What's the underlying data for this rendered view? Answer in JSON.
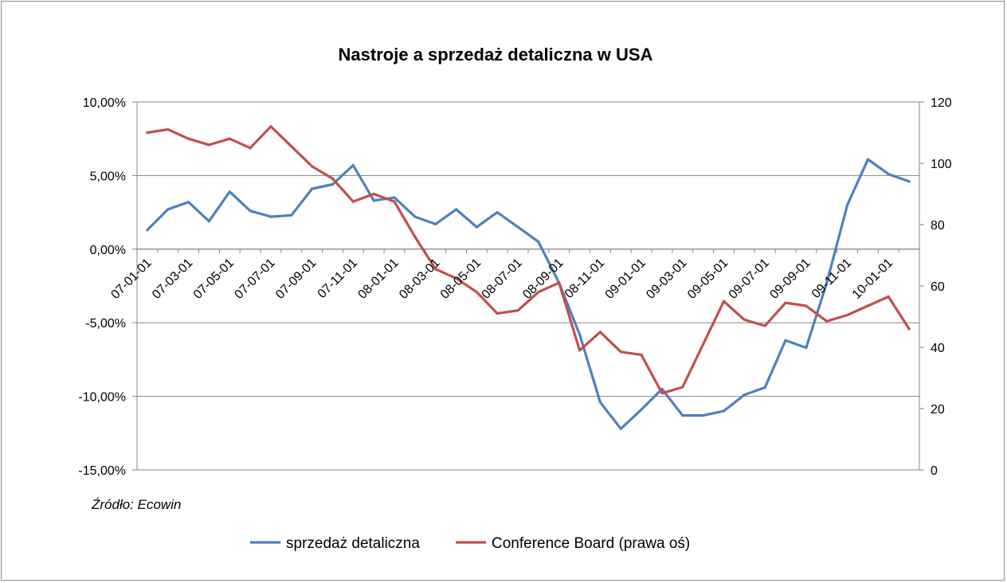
{
  "chart_data": {
    "type": "line",
    "title": "Nastroje a sprzedaż detaliczna w USA",
    "source": "Źródło: Ecowin",
    "x_tick_labels": [
      "07-01-01",
      "07-03-01",
      "07-05-01",
      "07-07-01",
      "07-09-01",
      "07-11-01",
      "08-01-01",
      "08-03-01",
      "08-05-01",
      "08-07-01",
      "08-09-01",
      "08-11-01",
      "09-01-01",
      "09-03-01",
      "09-05-01",
      "09-07-01",
      "09-09-01",
      "09-11-01",
      "10-01-01"
    ],
    "left_axis": {
      "min": -15,
      "max": 10,
      "step": 5,
      "tick_labels": [
        "-15,00%",
        "-10,00%",
        "-5,00%",
        "0,00%",
        "5,00%",
        "10,00%"
      ]
    },
    "right_axis": {
      "min": 0,
      "max": 120,
      "step": 20,
      "tick_labels": [
        "0",
        "20",
        "40",
        "60",
        "80",
        "100",
        "120"
      ]
    },
    "grid": true,
    "legend_position": "bottom",
    "series": [
      {
        "name": "sprzedaż detaliczna",
        "axis": "left",
        "color": "#4f81bd",
        "values": [
          1.3,
          2.7,
          3.2,
          1.9,
          3.9,
          2.6,
          2.2,
          2.3,
          4.1,
          4.4,
          5.7,
          3.3,
          3.5,
          2.2,
          1.7,
          2.7,
          1.5,
          2.5,
          1.5,
          0.5,
          -2.3,
          -5.8,
          -10.4,
          -12.2,
          -10.9,
          -9.5,
          -11.3,
          -11.3,
          -11.0,
          -9.9,
          -9.4,
          -6.2,
          -6.7,
          -2.3,
          3.0,
          6.1,
          5.1,
          4.6
        ]
      },
      {
        "name": "Conference Board (prawa oś)",
        "axis": "right",
        "color": "#c0504d",
        "values": [
          110.0,
          111.0,
          108.0,
          106.0,
          108.0,
          105.0,
          112.0,
          105.5,
          99.0,
          95.0,
          87.5,
          90.0,
          87.5,
          76.0,
          65.5,
          62.5,
          58.0,
          51.0,
          52.0,
          58.0,
          61.0,
          39.0,
          45.0,
          38.5,
          37.5,
          25.0,
          27.0,
          41.0,
          55.0,
          49.0,
          47.0,
          54.5,
          53.5,
          48.5,
          50.5,
          53.5,
          56.5,
          46.0
        ]
      }
    ]
  }
}
